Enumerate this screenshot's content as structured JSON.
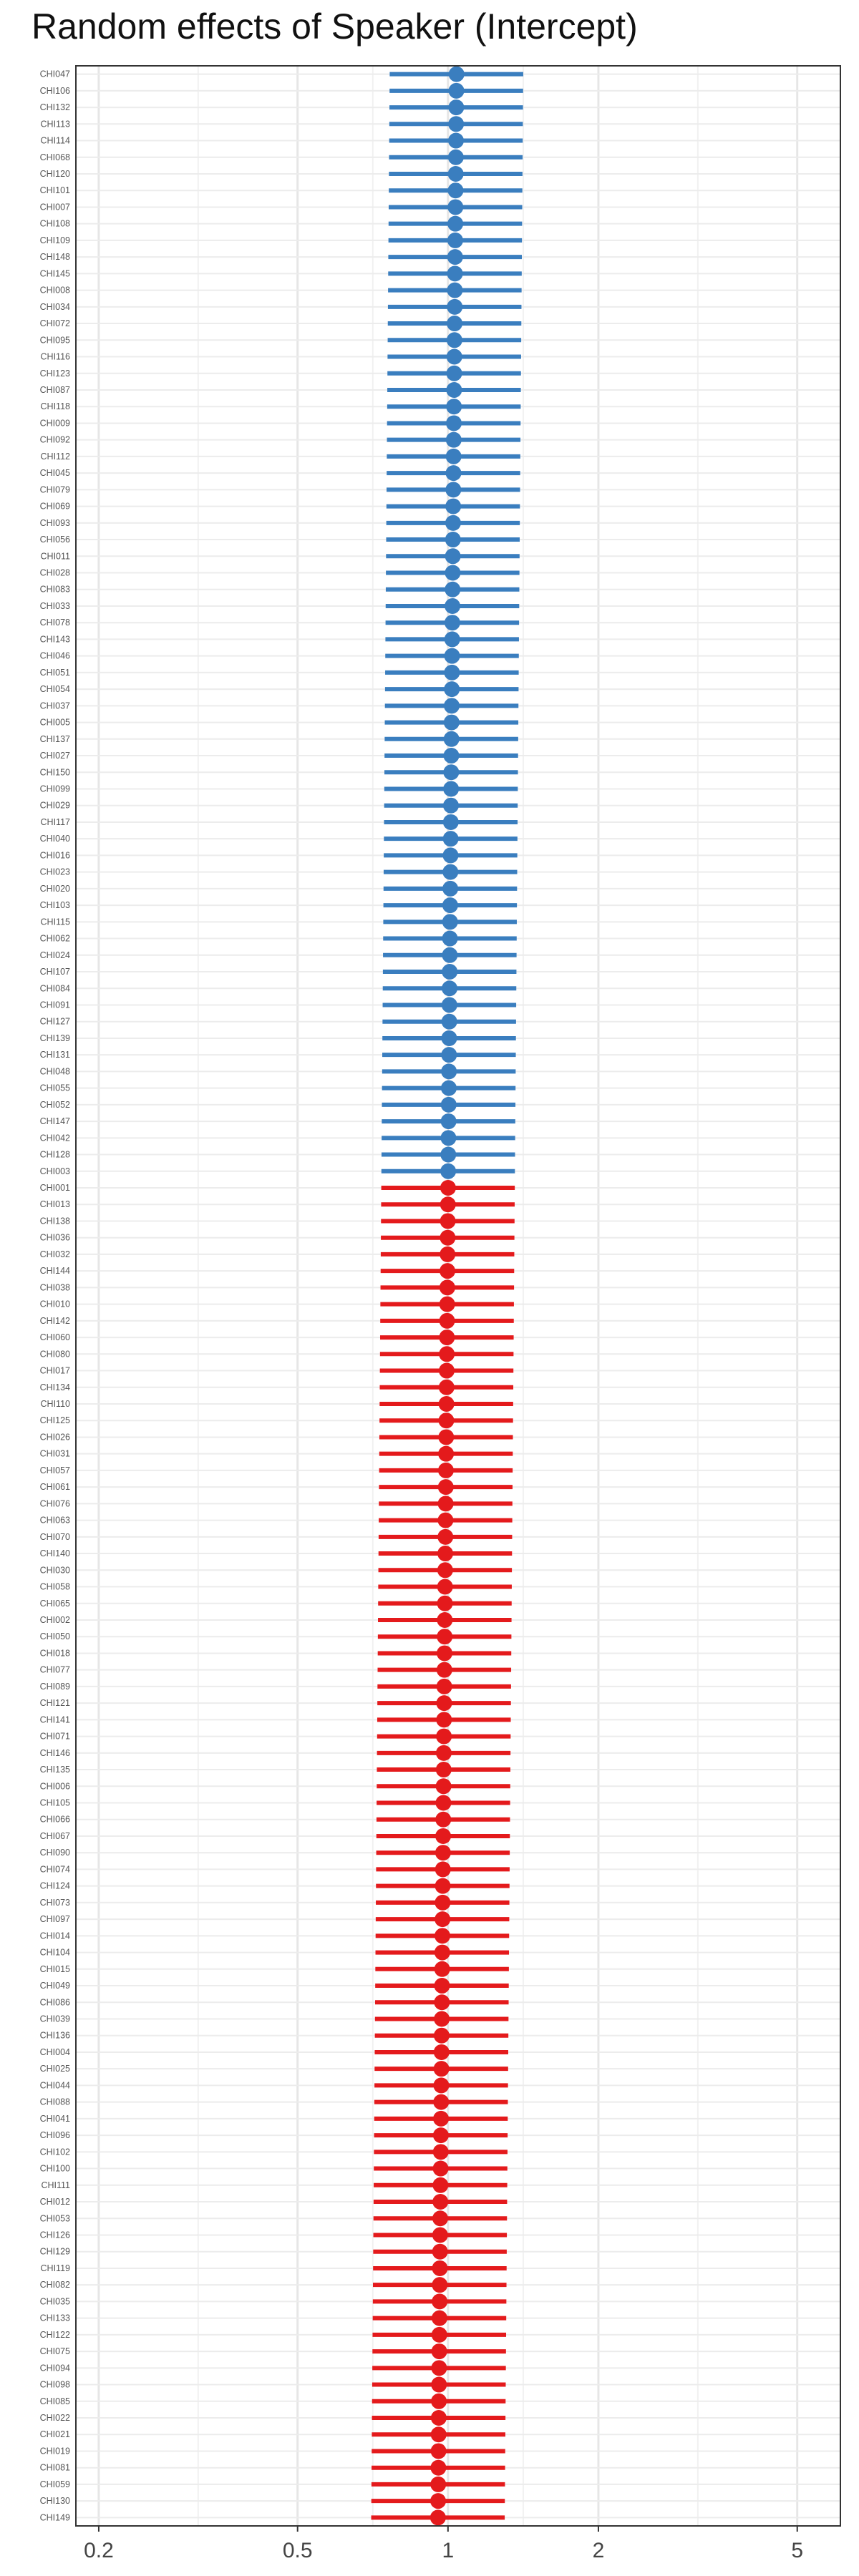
{
  "chart_data": {
    "type": "forest",
    "title": "Random effects of Speaker (Intercept)",
    "xlabel": "",
    "ylabel": "",
    "x_scale": "log",
    "xlim": [
      0.18,
      6.1
    ],
    "x_ticks": [
      0.2,
      0.5,
      1,
      2,
      5
    ],
    "x_tick_labels": [
      "0.2",
      "0.5",
      "1",
      "2",
      "5"
    ],
    "grid": true,
    "legend": "none",
    "colors": {
      "above_one": "#3A7EBF",
      "below_one": "#E41A1C"
    },
    "speakers": [
      "CHI047",
      "CHI106",
      "CHI132",
      "CHI113",
      "CHI114",
      "CHI068",
      "CHI120",
      "CHI101",
      "CHI007",
      "CHI108",
      "CHI109",
      "CHI148",
      "CHI145",
      "CHI008",
      "CHI034",
      "CHI072",
      "CHI095",
      "CHI116",
      "CHI123",
      "CHI087",
      "CHI118",
      "CHI009",
      "CHI092",
      "CHI112",
      "CHI045",
      "CHI079",
      "CHI069",
      "CHI093",
      "CHI056",
      "CHI011",
      "CHI028",
      "CHI083",
      "CHI033",
      "CHI078",
      "CHI143",
      "CHI046",
      "CHI051",
      "CHI054",
      "CHI037",
      "CHI005",
      "CHI137",
      "CHI027",
      "CHI150",
      "CHI099",
      "CHI029",
      "CHI117",
      "CHI040",
      "CHI016",
      "CHI023",
      "CHI020",
      "CHI103",
      "CHI115",
      "CHI062",
      "CHI024",
      "CHI107",
      "CHI084",
      "CHI091",
      "CHI127",
      "CHI139",
      "CHI131",
      "CHI048",
      "CHI055",
      "CHI052",
      "CHI147",
      "CHI042",
      "CHI128",
      "CHI003",
      "CHI001",
      "CHI013",
      "CHI138",
      "CHI036",
      "CHI032",
      "CHI144",
      "CHI038",
      "CHI010",
      "CHI142",
      "CHI060",
      "CHI080",
      "CHI017",
      "CHI134",
      "CHI110",
      "CHI125",
      "CHI026",
      "CHI031",
      "CHI057",
      "CHI061",
      "CHI076",
      "CHI063",
      "CHI070",
      "CHI140",
      "CHI030",
      "CHI058",
      "CHI065",
      "CHI002",
      "CHI050",
      "CHI018",
      "CHI077",
      "CHI089",
      "CHI121",
      "CHI141",
      "CHI071",
      "CHI146",
      "CHI135",
      "CHI006",
      "CHI105",
      "CHI066",
      "CHI067",
      "CHI090",
      "CHI074",
      "CHI124",
      "CHI073",
      "CHI097",
      "CHI014",
      "CHI104",
      "CHI015",
      "CHI049",
      "CHI086",
      "CHI039",
      "CHI136",
      "CHI004",
      "CHI025",
      "CHI044",
      "CHI088",
      "CHI041",
      "CHI096",
      "CHI102",
      "CHI100",
      "CHI111",
      "CHI012",
      "CHI053",
      "CHI126",
      "CHI129",
      "CHI119",
      "CHI082",
      "CHI035",
      "CHI133",
      "CHI122",
      "CHI075",
      "CHI094",
      "CHI098",
      "CHI085",
      "CHI022",
      "CHI021",
      "CHI019",
      "CHI081",
      "CHI059",
      "CHI130",
      "CHI149"
    ],
    "estimate_first": 1.04,
    "estimate_last": 0.955,
    "ci_low_ratio": 0.735,
    "ci_high_ratio": 1.36,
    "n_above_one": 67
  }
}
